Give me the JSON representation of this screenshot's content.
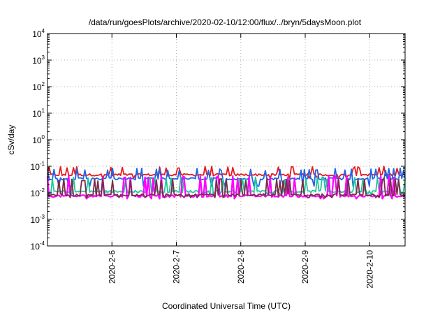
{
  "chart_data": {
    "type": "line",
    "title": "/data/run/goesPlots/archive/2020-02-10/12:00/flux/../bryn/5daysMoon.plot",
    "xlabel": "Coordinated Universal Time (UTC)",
    "ylabel": "cSv/day",
    "yscale": "log",
    "ylim_exponents": [
      -4,
      4
    ],
    "y_tick_base": "10",
    "y_tick_exponents": [
      "-4",
      "-3",
      "-2",
      "-1",
      "0",
      "1",
      "2",
      "3",
      "4"
    ],
    "xlim_days": [
      5.0,
      10.55
    ],
    "x_ticks": [
      {
        "label": "2020-2-6",
        "day": 6
      },
      {
        "label": "2020-2-7",
        "day": 7
      },
      {
        "label": "2020-2-8",
        "day": 8
      },
      {
        "label": "2020-2-9",
        "day": 9
      },
      {
        "label": "2020-2-10",
        "day": 10
      }
    ],
    "grid": true,
    "legend": "none",
    "series": [
      {
        "color": "#e8191c",
        "base_exp": -1.32,
        "spike_exp": -1.05,
        "dip_exp": -1.45
      },
      {
        "color": "#1f64e6",
        "base_exp": -1.47,
        "spike_exp": -1.12,
        "dip_exp": -1.75
      },
      {
        "color": "#1fc79a",
        "base_exp": -1.95,
        "spike_exp": -1.45,
        "dip_exp": -2.05
      },
      {
        "color": "#ff00ff",
        "base_exp": -2.12,
        "spike_exp": -1.4,
        "dip_exp": -2.22
      },
      {
        "color": "#7a2c4a",
        "base_exp": -2.08,
        "spike_exp": -1.5,
        "dip_exp": -2.18
      }
    ]
  }
}
